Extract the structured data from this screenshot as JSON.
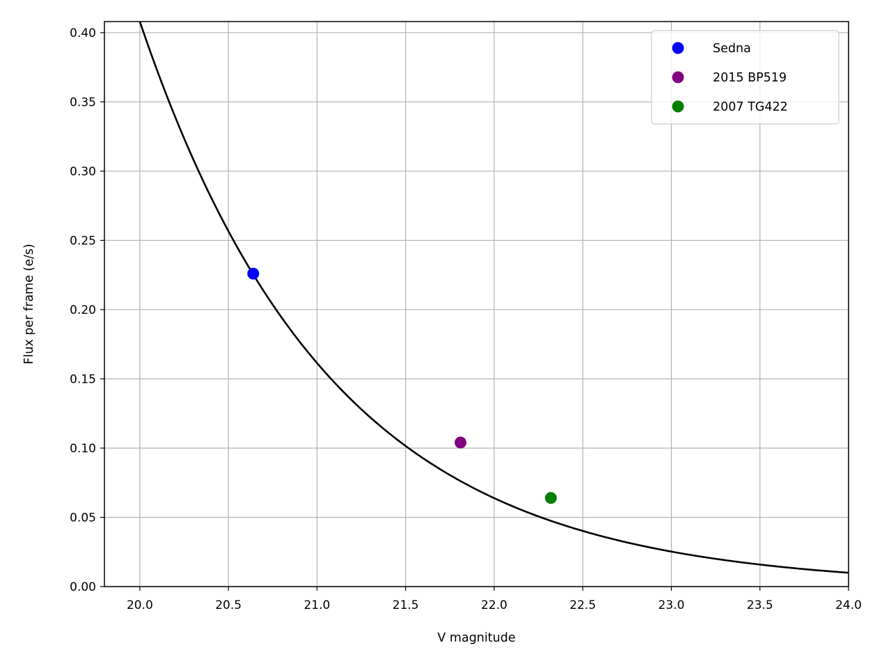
{
  "chart_data": {
    "type": "scatter",
    "title": "",
    "xlabel": "V magnitude",
    "ylabel": "Flux per frame (e/s)",
    "xlim": [
      19.8,
      24.0
    ],
    "ylim": [
      0.0,
      0.408
    ],
    "grid": true,
    "legend_position": "top-right",
    "x_ticks": [
      "20.0",
      "20.5",
      "21.0",
      "21.5",
      "22.0",
      "22.5",
      "23.0",
      "23.5",
      "24.0"
    ],
    "y_ticks": [
      "0.00",
      "0.05",
      "0.10",
      "0.15",
      "0.20",
      "0.25",
      "0.30",
      "0.35",
      "0.40"
    ],
    "curve": {
      "color": "#000000",
      "x_start": 20.0,
      "x_end": 24.0,
      "points": [
        {
          "x": 20.0,
          "y": 0.408
        },
        {
          "x": 20.5,
          "y": 0.258
        },
        {
          "x": 21.0,
          "y": 0.163
        },
        {
          "x": 21.5,
          "y": 0.103
        },
        {
          "x": 22.0,
          "y": 0.065
        },
        {
          "x": 22.5,
          "y": 0.041
        },
        {
          "x": 23.0,
          "y": 0.026
        },
        {
          "x": 23.5,
          "y": 0.016
        },
        {
          "x": 24.0,
          "y": 0.01
        }
      ]
    },
    "series": [
      {
        "name": "Sedna",
        "color": "#0000ff",
        "points": [
          {
            "x": 20.64,
            "y": 0.226
          }
        ]
      },
      {
        "name": "2015 BP519",
        "color": "#800080",
        "points": [
          {
            "x": 21.81,
            "y": 0.104
          }
        ]
      },
      {
        "name": "2007 TG422",
        "color": "#008000",
        "points": [
          {
            "x": 22.32,
            "y": 0.064
          }
        ]
      }
    ]
  }
}
